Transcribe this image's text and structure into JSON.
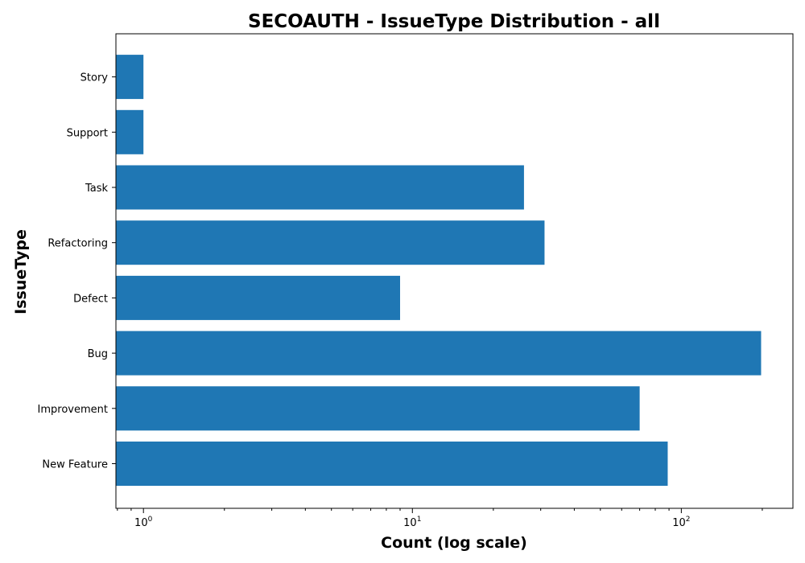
{
  "chart_data": {
    "type": "bar",
    "orientation": "horizontal",
    "title": "SECOAUTH - IssueType Distribution - all",
    "xlabel": "Count (log scale)",
    "ylabel": "IssueType",
    "x_scale": "log",
    "xlim": [
      0.79,
      260
    ],
    "x_ticks": [
      {
        "value": 1,
        "base": "10",
        "exp": "0"
      },
      {
        "value": 10,
        "base": "10",
        "exp": "1"
      },
      {
        "value": 100,
        "base": "10",
        "exp": "2"
      }
    ],
    "categories": [
      "New Feature",
      "Improvement",
      "Bug",
      "Defect",
      "Refactoring",
      "Task",
      "Support",
      "Story"
    ],
    "values": [
      89,
      70,
      198,
      9,
      31,
      26,
      1,
      1
    ],
    "bar_color": "#1f77b4",
    "grid": false,
    "legend": "none"
  }
}
